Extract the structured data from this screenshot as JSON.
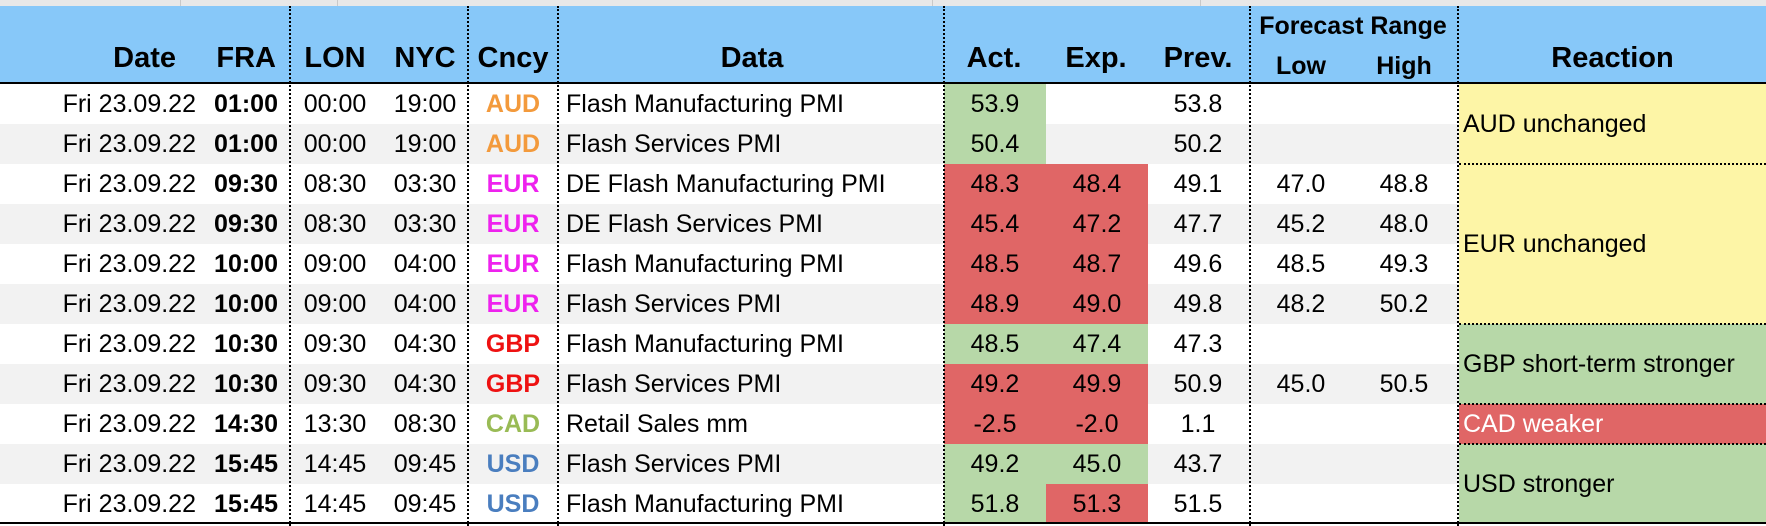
{
  "headers": {
    "date": "Date",
    "fra": "FRA",
    "lon": "LON",
    "nyc": "NYC",
    "cncy": "Cncy",
    "data": "Data",
    "act": "Act.",
    "exp": "Exp.",
    "prev": "Prev.",
    "forecast_range": "Forecast Range",
    "low": "Low",
    "high": "High",
    "reaction": "Reaction"
  },
  "colors": {
    "header_bg": "#87c8f9",
    "better": "#b7d8a8",
    "worse": "#e06666",
    "neutral": "#fdf5a6",
    "AUD": "#f39a3c",
    "EUR": "#ee22ee",
    "GBP": "#ee1111",
    "CAD": "#99bb55",
    "USD": "#4a7ebf"
  },
  "rows": [
    {
      "date": "Fri 23.09.22",
      "fra": "01:00",
      "lon": "00:00",
      "nyc": "19:00",
      "cncy": "AUD",
      "data": "Flash Manufacturing PMI",
      "act": "53.9",
      "exp": "",
      "prev": "53.8",
      "low": "",
      "high": "",
      "act_color": "better",
      "exp_color": ""
    },
    {
      "date": "Fri 23.09.22",
      "fra": "01:00",
      "lon": "00:00",
      "nyc": "19:00",
      "cncy": "AUD",
      "data": "Flash Services PMI",
      "act": "50.4",
      "exp": "",
      "prev": "50.2",
      "low": "",
      "high": "",
      "act_color": "better",
      "exp_color": ""
    },
    {
      "date": "Fri 23.09.22",
      "fra": "09:30",
      "lon": "08:30",
      "nyc": "03:30",
      "cncy": "EUR",
      "data": "DE Flash Manufacturing PMI",
      "act": "48.3",
      "exp": "48.4",
      "prev": "49.1",
      "low": "47.0",
      "high": "48.8",
      "act_color": "worse",
      "exp_color": "worse"
    },
    {
      "date": "Fri 23.09.22",
      "fra": "09:30",
      "lon": "08:30",
      "nyc": "03:30",
      "cncy": "EUR",
      "data": "DE Flash Services PMI",
      "act": "45.4",
      "exp": "47.2",
      "prev": "47.7",
      "low": "45.2",
      "high": "48.0",
      "act_color": "worse",
      "exp_color": "worse"
    },
    {
      "date": "Fri 23.09.22",
      "fra": "10:00",
      "lon": "09:00",
      "nyc": "04:00",
      "cncy": "EUR",
      "data": "Flash Manufacturing PMI",
      "act": "48.5",
      "exp": "48.7",
      "prev": "49.6",
      "low": "48.5",
      "high": "49.3",
      "act_color": "worse",
      "exp_color": "worse"
    },
    {
      "date": "Fri 23.09.22",
      "fra": "10:00",
      "lon": "09:00",
      "nyc": "04:00",
      "cncy": "EUR",
      "data": "Flash Services PMI",
      "act": "48.9",
      "exp": "49.0",
      "prev": "49.8",
      "low": "48.2",
      "high": "50.2",
      "act_color": "worse",
      "exp_color": "worse"
    },
    {
      "date": "Fri 23.09.22",
      "fra": "10:30",
      "lon": "09:30",
      "nyc": "04:30",
      "cncy": "GBP",
      "data": "Flash Manufacturing PMI",
      "act": "48.5",
      "exp": "47.4",
      "prev": "47.3",
      "low": "",
      "high": "",
      "act_color": "better",
      "exp_color": "better"
    },
    {
      "date": "Fri 23.09.22",
      "fra": "10:30",
      "lon": "09:30",
      "nyc": "04:30",
      "cncy": "GBP",
      "data": "Flash Services PMI",
      "act": "49.2",
      "exp": "49.9",
      "prev": "50.9",
      "low": "45.0",
      "high": "50.5",
      "act_color": "worse",
      "exp_color": "worse"
    },
    {
      "date": "Fri 23.09.22",
      "fra": "14:30",
      "lon": "13:30",
      "nyc": "08:30",
      "cncy": "CAD",
      "data": "Retail Sales mm",
      "act": "-2.5",
      "exp": "-2.0",
      "prev": "1.1",
      "low": "",
      "high": "",
      "act_color": "worse",
      "exp_color": "worse"
    },
    {
      "date": "Fri 23.09.22",
      "fra": "15:45",
      "lon": "14:45",
      "nyc": "09:45",
      "cncy": "USD",
      "data": "Flash Services PMI",
      "act": "49.2",
      "exp": "45.0",
      "prev": "43.7",
      "low": "",
      "high": "",
      "act_color": "better",
      "exp_color": "better"
    },
    {
      "date": "Fri 23.09.22",
      "fra": "15:45",
      "lon": "14:45",
      "nyc": "09:45",
      "cncy": "USD",
      "data": "Flash Manufacturing PMI",
      "act": "51.8",
      "exp": "51.3",
      "prev": "51.5",
      "low": "",
      "high": "",
      "act_color": "better",
      "exp_color": "worse"
    }
  ],
  "reactions": [
    {
      "text": "AUD unchanged",
      "start_row": 0,
      "span": 2,
      "color": "neutral"
    },
    {
      "text": "EUR unchanged",
      "start_row": 2,
      "span": 4,
      "color": "neutral"
    },
    {
      "text": "GBP short-term stronger",
      "start_row": 6,
      "span": 2,
      "color": "better"
    },
    {
      "text": "CAD weaker",
      "start_row": 8,
      "span": 1,
      "color": "worse"
    },
    {
      "text": "USD stronger",
      "start_row": 9,
      "span": 2,
      "color": "better"
    }
  ]
}
